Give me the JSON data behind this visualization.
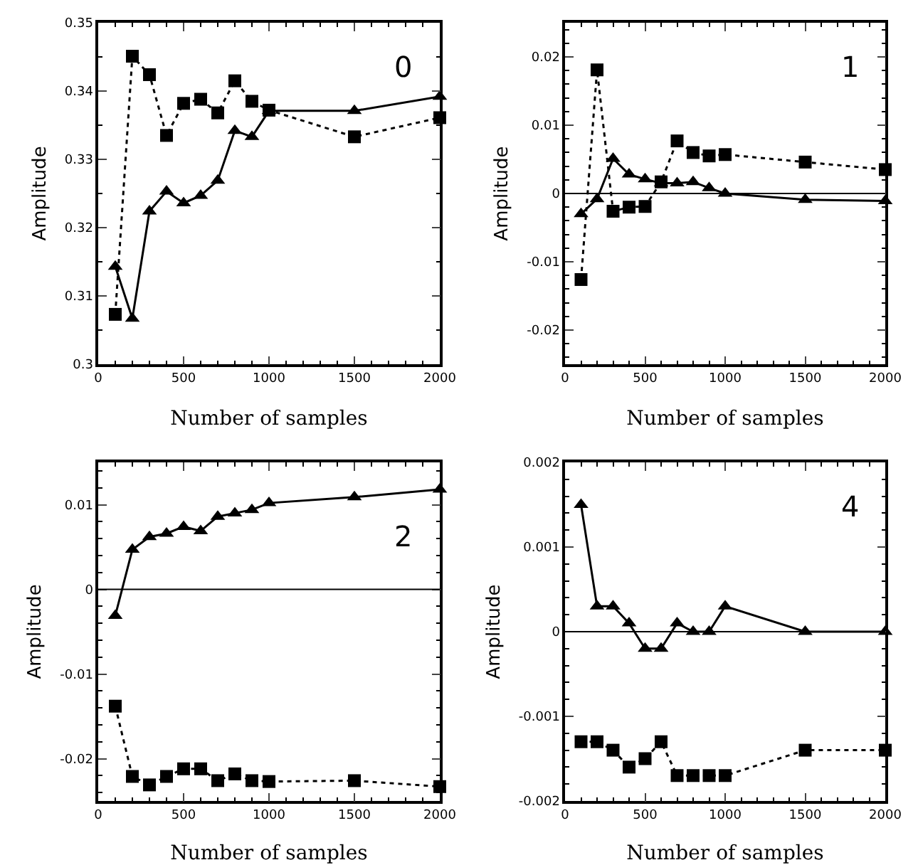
{
  "chart_data": [
    {
      "type": "line",
      "xlabel": "Number of samples",
      "ylabel": "Amplitude",
      "annotations": [
        "0"
      ],
      "x": [
        100,
        200,
        300,
        400,
        500,
        600,
        700,
        800,
        900,
        1000,
        1500,
        2000
      ],
      "xlim": [
        0,
        2000
      ],
      "xticks": [
        0,
        500,
        1000,
        1500,
        2000
      ],
      "ylim": [
        0.3,
        0.35
      ],
      "yticks": [
        0.3,
        0.31,
        0.32,
        0.33,
        0.34,
        0.35
      ],
      "series": [
        {
          "color": "#000000",
          "marker": "square",
          "line_style": "dotted",
          "values": [
            0.3073,
            0.3451,
            0.3424,
            0.3335,
            0.3382,
            0.3388,
            0.3368,
            0.3415,
            0.3385,
            0.3372,
            0.3333,
            0.3361
          ]
        },
        {
          "color": "#000000",
          "marker": "triangle",
          "line_style": "solid",
          "values": [
            0.3143,
            0.3067,
            0.3224,
            0.3253,
            0.3236,
            0.3247,
            0.3269,
            0.3342,
            0.3333,
            0.3371,
            0.3371,
            0.3392
          ]
        }
      ]
    },
    {
      "type": "line",
      "xlabel": "Number of samples",
      "ylabel": "Amplitude",
      "annotations": [
        "1"
      ],
      "x": [
        100,
        200,
        300,
        400,
        500,
        600,
        700,
        800,
        900,
        1000,
        1500,
        2000
      ],
      "xlim": [
        0,
        2000
      ],
      "xticks": [
        0,
        500,
        1000,
        1500,
        2000
      ],
      "ylim": [
        -0.025,
        0.025
      ],
      "yticks": [
        -0.02,
        -0.01,
        0,
        0.01,
        0.02
      ],
      "ref_lines": [
        {
          "axis": "y",
          "value": 0,
          "color": "#000000"
        }
      ],
      "series": [
        {
          "color": "#000000",
          "marker": "square",
          "line_style": "dotted",
          "values": [
            -0.0126,
            0.0181,
            -0.0026,
            -0.002,
            -0.0019,
            0.0017,
            0.0077,
            0.006,
            0.0055,
            0.0057,
            0.0046,
            0.0035
          ]
        },
        {
          "color": "#000000",
          "marker": "triangle",
          "line_style": "solid",
          "values": [
            -0.003,
            -0.0008,
            0.0051,
            0.0028,
            0.0021,
            0.0015,
            0.0015,
            0.0017,
            0.0008,
            0.0,
            -0.0009,
            -0.0011
          ]
        }
      ]
    },
    {
      "type": "line",
      "xlabel": "Number of samples",
      "ylabel": "Amplitude",
      "annotations": [
        "2"
      ],
      "x": [
        100,
        200,
        300,
        400,
        500,
        600,
        700,
        800,
        900,
        1000,
        1500,
        2000
      ],
      "xlim": [
        0,
        2000
      ],
      "xticks": [
        0,
        500,
        1000,
        1500,
        2000
      ],
      "ylim": [
        -0.025,
        0.015
      ],
      "yticks": [
        -0.02,
        -0.01,
        0,
        0.01
      ],
      "ref_lines": [
        {
          "axis": "y",
          "value": 0,
          "color": "#000000"
        }
      ],
      "series": [
        {
          "color": "#000000",
          "marker": "triangle",
          "line_style": "solid",
          "values": [
            -0.0031,
            0.0047,
            0.0062,
            0.0066,
            0.0074,
            0.0069,
            0.0086,
            0.009,
            0.0094,
            0.0102,
            0.0109,
            0.0118
          ]
        },
        {
          "color": "#000000",
          "marker": "square",
          "line_style": "dotted",
          "values": [
            -0.0138,
            -0.0221,
            -0.0231,
            -0.0221,
            -0.0212,
            -0.0212,
            -0.0226,
            -0.0218,
            -0.0226,
            -0.0227,
            -0.0226,
            -0.0233
          ]
        }
      ]
    },
    {
      "type": "line",
      "xlabel": "Number of samples",
      "ylabel": "Amplitude",
      "annotations": [
        "4"
      ],
      "x": [
        100,
        200,
        300,
        400,
        500,
        600,
        700,
        800,
        900,
        1000,
        1500,
        2000
      ],
      "xlim": [
        0,
        2000
      ],
      "xticks": [
        0,
        500,
        1000,
        1500,
        2000
      ],
      "ylim": [
        -0.002,
        0.002
      ],
      "yticks": [
        -0.002,
        -0.001,
        0,
        0.001,
        0.002
      ],
      "ref_lines": [
        {
          "axis": "y",
          "value": 0,
          "color": "#000000"
        }
      ],
      "series": [
        {
          "color": "#000000",
          "marker": "triangle",
          "line_style": "solid",
          "values": [
            0.0015,
            0.0003,
            0.0003,
            0.0001,
            -0.0002,
            -0.0002,
            0.0001,
            0.0,
            0.0,
            0.0003,
            0.0,
            0.0
          ]
        },
        {
          "color": "#000000",
          "marker": "square",
          "line_style": "dotted",
          "values": [
            -0.0013,
            -0.0013,
            -0.0014,
            -0.0016,
            -0.0015,
            -0.0013,
            -0.0017,
            -0.0017,
            -0.0017,
            -0.0017,
            -0.0014,
            -0.0014
          ]
        }
      ]
    }
  ]
}
